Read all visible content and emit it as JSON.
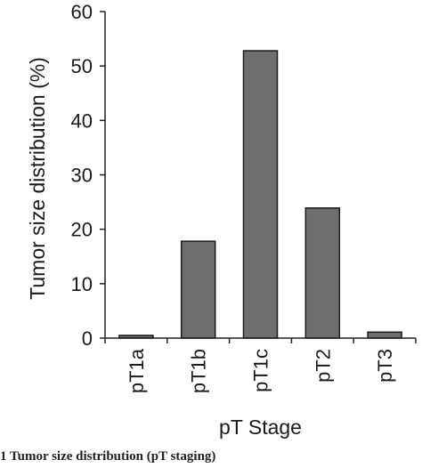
{
  "chart_data": {
    "type": "bar",
    "categories": [
      "pT1a",
      "pT1b",
      "pT1c",
      "pT2",
      "pT3"
    ],
    "values": [
      0.5,
      17.8,
      52.8,
      23.9,
      1.1
    ],
    "title": "",
    "xlabel": "pT Stage",
    "ylabel": "Tumor size distribution (%)",
    "ylim": [
      0,
      60
    ],
    "yticks": [
      "0",
      "10",
      "20",
      "30",
      "40",
      "50",
      "60"
    ],
    "grid": false,
    "bar_color": "#6e6e6e"
  },
  "caption": "1 Tumor size distribution (pT staging)"
}
